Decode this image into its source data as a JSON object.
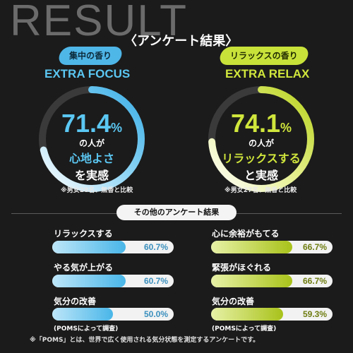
{
  "header": {
    "result_title": "RESULT",
    "survey_title": "〈アンケート結果〉"
  },
  "left": {
    "badge": "集中の香り",
    "extra": "EXTRA FOCUS",
    "pct_num": "71.4",
    "pct_sign": "%",
    "line1": "の人が",
    "line2": "心地よさ",
    "line3": "を実感",
    "note": "※男女28名、無香と比較",
    "ring_value": 0.714,
    "color": "#5bc7f2"
  },
  "right": {
    "badge": "リラックスの香り",
    "extra": "EXTRA RELAX",
    "pct_num": "74.1",
    "pct_sign": "%",
    "line1": "の人が",
    "line2": "リラックスする",
    "line3": "と実感",
    "note": "※男女27名、無香と比較",
    "ring_value": 0.741,
    "color": "#d0e63c"
  },
  "other": {
    "title": "その他のアンケート結果",
    "left_items": [
      {
        "label": "リラックスする",
        "value": "60.7%",
        "fraction": 0.607
      },
      {
        "label": "やる気が上がる",
        "value": "60.7%",
        "fraction": 0.607
      },
      {
        "label": "気分の改善",
        "value": "50.0%",
        "fraction": 0.5
      }
    ],
    "right_items": [
      {
        "label": "心に余裕がもてる",
        "value": "66.7%",
        "fraction": 0.667
      },
      {
        "label": "緊張がほぐれる",
        "value": "66.7%",
        "fraction": 0.667
      },
      {
        "label": "気分の改善",
        "value": "59.3%",
        "fraction": 0.593
      }
    ],
    "poms_note": "(POMSによって調査)"
  },
  "footnote": "※「POMS」とは、世界で広く使用される気分状態を測定するアンケートです。"
}
